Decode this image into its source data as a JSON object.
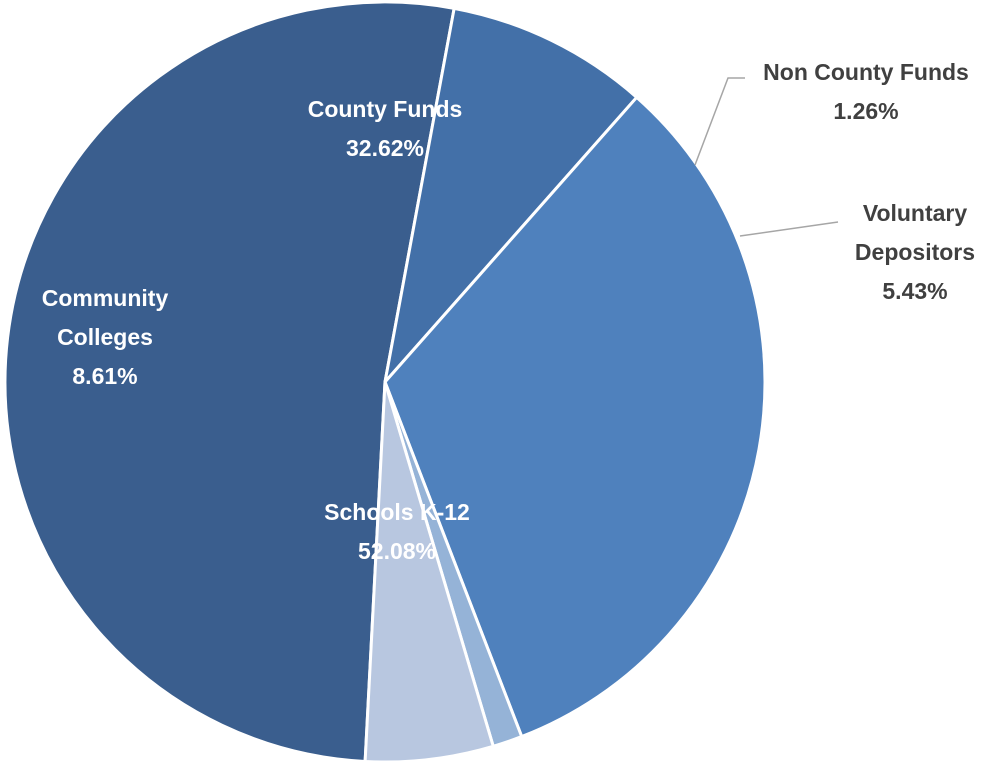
{
  "chart_data": {
    "type": "pie",
    "slices": [
      {
        "name": "Schools K-12",
        "label_lines": [
          "Schools K-12"
        ],
        "percent_label": "52.08%",
        "value": 52.08,
        "color": "#3a5e8e",
        "label_color": "#ffffff",
        "label_position": "inside"
      },
      {
        "name": "Community Colleges",
        "label_lines": [
          "Community",
          "Colleges"
        ],
        "percent_label": "8.61%",
        "value": 8.61,
        "color": "#4370a8",
        "label_color": "#ffffff",
        "label_position": "inside"
      },
      {
        "name": "County Funds",
        "label_lines": [
          "County Funds"
        ],
        "percent_label": "32.62%",
        "value": 32.62,
        "color": "#4f81bd",
        "label_color": "#ffffff",
        "label_position": "inside"
      },
      {
        "name": "Non County Funds",
        "label_lines": [
          "Non County Funds"
        ],
        "percent_label": "1.26%",
        "value": 1.26,
        "color": "#95b3d7",
        "label_color": "#404040",
        "label_position": "outside"
      },
      {
        "name": "Voluntary Depositors",
        "label_lines": [
          "Voluntary",
          "Depositors"
        ],
        "percent_label": "5.43%",
        "value": 5.43,
        "color": "#b8c7e0",
        "label_color": "#404040",
        "label_position": "outside"
      }
    ]
  }
}
